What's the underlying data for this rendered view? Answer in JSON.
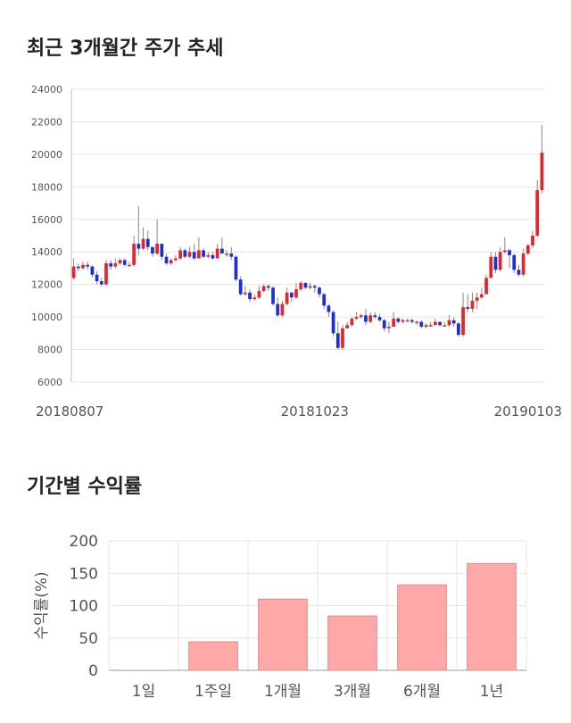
{
  "headings": {
    "price_chart_title": "최근 3개월간 주가 추세",
    "return_chart_title": "기간별 수익률"
  },
  "colors": {
    "up": "#e3262b",
    "down": "#1d2fd2",
    "bar_fill": "#ffa8a8",
    "bar_stroke": "#e08a8a",
    "grid": "#e6e6e6",
    "axis_text": "#555555"
  },
  "chart_data": [
    {
      "type": "candlestick",
      "title": "최근 3개월간 주가 추세",
      "ylim": [
        6000,
        24000
      ],
      "y_ticks": [
        6000,
        8000,
        10000,
        12000,
        14000,
        16000,
        18000,
        20000,
        22000,
        24000
      ],
      "x_tick_labels": [
        {
          "label": "20180807",
          "index": 0
        },
        {
          "label": "20181023",
          "index": 52
        },
        {
          "label": "20190103",
          "index": 101
        }
      ],
      "grid": true,
      "candles": [
        [
          12400,
          13100,
          13600,
          12300
        ],
        [
          13100,
          13000,
          13300,
          12800
        ],
        [
          13000,
          13200,
          13400,
          12900
        ],
        [
          13200,
          13100,
          13400,
          12900
        ],
        [
          13100,
          12600,
          13200,
          12400
        ],
        [
          12600,
          12200,
          12800,
          12000
        ],
        [
          12200,
          12000,
          12400,
          11900
        ],
        [
          12000,
          13300,
          13500,
          11900
        ],
        [
          13300,
          13100,
          13500,
          12900
        ],
        [
          13100,
          13300,
          13600,
          13000
        ],
        [
          13300,
          13500,
          13600,
          13200
        ],
        [
          13500,
          13200,
          13600,
          13100
        ],
        [
          13200,
          13200,
          13400,
          13100
        ],
        [
          13200,
          14500,
          15000,
          13100
        ],
        [
          14500,
          14200,
          16800,
          13800
        ],
        [
          14200,
          14800,
          15500,
          14100
        ],
        [
          14800,
          14300,
          15300,
          14100
        ],
        [
          14300,
          13900,
          14300,
          13700
        ],
        [
          13900,
          14500,
          16000,
          13800
        ],
        [
          14500,
          13700,
          14500,
          13500
        ],
        [
          13700,
          13300,
          13900,
          13200
        ],
        [
          13300,
          13500,
          13600,
          13200
        ],
        [
          13500,
          13600,
          13800,
          13400
        ],
        [
          13600,
          14100,
          14300,
          13500
        ],
        [
          14100,
          13700,
          14200,
          13600
        ],
        [
          13700,
          14000,
          14300,
          13600
        ],
        [
          14000,
          13600,
          14500,
          13500
        ],
        [
          13600,
          14100,
          14900,
          13600
        ],
        [
          14100,
          13700,
          14200,
          13600
        ],
        [
          13700,
          13800,
          14000,
          13600
        ],
        [
          13800,
          13600,
          14000,
          13500
        ],
        [
          13600,
          14200,
          14500,
          13600
        ],
        [
          14200,
          13900,
          14900,
          13900
        ],
        [
          13900,
          13900,
          14100,
          13700
        ],
        [
          13900,
          13700,
          14300,
          13500
        ],
        [
          13700,
          12300,
          13800,
          12200
        ],
        [
          12300,
          11400,
          12500,
          11300
        ],
        [
          11400,
          11500,
          11900,
          11300
        ],
        [
          11500,
          11100,
          11700,
          10900
        ],
        [
          11100,
          11200,
          11400,
          11000
        ],
        [
          11200,
          11600,
          11900,
          11100
        ],
        [
          11600,
          11900,
          12000,
          11500
        ],
        [
          11900,
          11800,
          12000,
          11600
        ],
        [
          11800,
          10800,
          11900,
          10700
        ],
        [
          10800,
          10100,
          11200,
          10000
        ],
        [
          10100,
          10800,
          11000,
          10000
        ],
        [
          10800,
          11500,
          11800,
          10700
        ],
        [
          11500,
          11200,
          11500,
          10900
        ],
        [
          11200,
          11700,
          12100,
          11100
        ],
        [
          11700,
          12100,
          12200,
          11600
        ],
        [
          12100,
          11800,
          12100,
          11700
        ],
        [
          11800,
          11900,
          12100,
          11700
        ],
        [
          11900,
          11800,
          12000,
          11500
        ],
        [
          11800,
          11400,
          11900,
          11200
        ],
        [
          11400,
          10700,
          11500,
          10500
        ],
        [
          10700,
          10300,
          10800,
          10000
        ],
        [
          10300,
          9000,
          10400,
          8800
        ],
        [
          9000,
          8100,
          9700,
          8000
        ],
        [
          8100,
          9300,
          9500,
          8000
        ],
        [
          9300,
          9500,
          9700,
          9300
        ],
        [
          9500,
          9900,
          10000,
          9400
        ],
        [
          9900,
          10000,
          10300,
          9800
        ],
        [
          10000,
          10100,
          10200,
          9900
        ],
        [
          10100,
          9700,
          10500,
          9500
        ],
        [
          9700,
          10100,
          10300,
          9600
        ],
        [
          10100,
          10000,
          10300,
          9900
        ],
        [
          10000,
          9800,
          10200,
          9700
        ],
        [
          9800,
          9300,
          9900,
          9100
        ],
        [
          9300,
          9400,
          9700,
          9000
        ],
        [
          9400,
          9900,
          10300,
          9400
        ],
        [
          9900,
          9700,
          10000,
          9600
        ],
        [
          9700,
          9800,
          9900,
          9600
        ],
        [
          9800,
          9800,
          9900,
          9700
        ],
        [
          9800,
          9700,
          9900,
          9600
        ],
        [
          9700,
          9700,
          9800,
          9500
        ],
        [
          9700,
          9400,
          9800,
          9300
        ],
        [
          9400,
          9500,
          9600,
          9300
        ],
        [
          9500,
          9500,
          9700,
          9400
        ],
        [
          9500,
          9700,
          9900,
          9500
        ],
        [
          9700,
          9500,
          9700,
          9400
        ],
        [
          9500,
          9500,
          9700,
          9400
        ],
        [
          9500,
          9800,
          10100,
          9400
        ],
        [
          9800,
          9600,
          10000,
          9400
        ],
        [
          9600,
          8900,
          9700,
          8800
        ],
        [
          8900,
          10600,
          11500,
          8800
        ],
        [
          10600,
          10500,
          11400,
          10300
        ],
        [
          10500,
          11000,
          11500,
          10300
        ],
        [
          11000,
          11200,
          11500,
          10500
        ],
        [
          11200,
          11400,
          11800,
          11100
        ],
        [
          11400,
          12400,
          12600,
          11400
        ],
        [
          12400,
          13700,
          14000,
          12400
        ],
        [
          13700,
          12900,
          14000,
          12700
        ],
        [
          12900,
          14000,
          14300,
          12800
        ],
        [
          14000,
          14100,
          14900,
          13900
        ],
        [
          14100,
          13800,
          14200,
          13000
        ],
        [
          13800,
          12900,
          13900,
          12700
        ],
        [
          12900,
          12600,
          13200,
          12500
        ],
        [
          12600,
          13900,
          14200,
          12500
        ],
        [
          13900,
          14400,
          14500,
          13800
        ],
        [
          14400,
          15000,
          15300,
          14200
        ],
        [
          15000,
          17800,
          18400,
          14900
        ],
        [
          17800,
          20100,
          21800,
          17600
        ]
      ]
    },
    {
      "type": "bar",
      "title": "기간별 수익률",
      "ylabel": "수익률(%)",
      "ylim": [
        0,
        200
      ],
      "y_ticks": [
        0,
        50,
        100,
        150,
        200
      ],
      "categories": [
        "1일",
        "1주일",
        "1개월",
        "3개월",
        "6개월",
        "1년"
      ],
      "values": [
        0,
        44,
        110,
        84,
        132,
        165
      ],
      "grid": true
    }
  ]
}
